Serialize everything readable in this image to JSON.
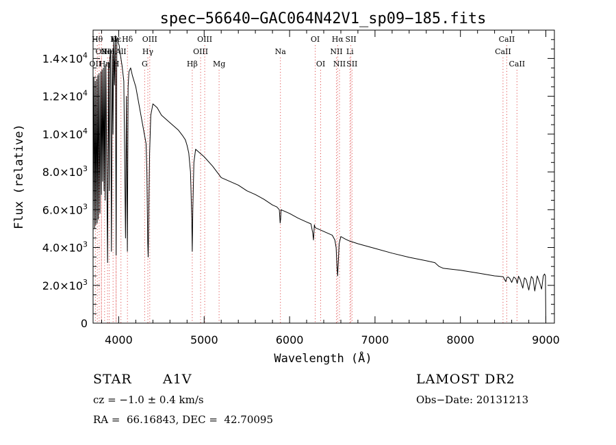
{
  "chart_data": {
    "type": "line",
    "title": "spec−56640−GAC064N42V1_sp09−185.fits",
    "xlabel": "Wavelength (Å)",
    "ylabel": "Flux (relative)",
    "xlim": [
      3700,
      9100
    ],
    "ylim": [
      0,
      15500
    ],
    "xticks": [
      {
        "value": 4000,
        "label": "4000"
      },
      {
        "value": 5000,
        "label": "5000"
      },
      {
        "value": 6000,
        "label": "6000"
      },
      {
        "value": 7000,
        "label": "7000"
      },
      {
        "value": 8000,
        "label": "8000"
      },
      {
        "value": 9000,
        "label": "9000"
      }
    ],
    "yticks": [
      {
        "value": 0,
        "mant": "0",
        "exp": ""
      },
      {
        "value": 2000,
        "mant": "2.0×10",
        "exp": "3"
      },
      {
        "value": 4000,
        "mant": "4.0×10",
        "exp": "3"
      },
      {
        "value": 6000,
        "mant": "6.0×10",
        "exp": "3"
      },
      {
        "value": 8000,
        "mant": "8.0×10",
        "exp": "3"
      },
      {
        "value": 10000,
        "mant": "1.0×10",
        "exp": "4"
      },
      {
        "value": 12000,
        "mant": "1.2×10",
        "exp": "4"
      },
      {
        "value": 14000,
        "mant": "1.4×10",
        "exp": "4"
      }
    ],
    "line_color": "#000000",
    "marker_color": "#e05050",
    "series": [
      {
        "name": "spectrum",
        "x": [
          3700,
          3710,
          3718,
          3725,
          3732,
          3740,
          3748,
          3755,
          3762,
          3770,
          3780,
          3790,
          3798,
          3805,
          3812,
          3820,
          3828,
          3835,
          3842,
          3850,
          3860,
          3870,
          3880,
          3889,
          3895,
          3905,
          3915,
          3925,
          3933,
          3940,
          3950,
          3960,
          3970,
          3978,
          3985,
          3995,
          4005,
          4020,
          4040,
          4060,
          4080,
          4090,
          4101,
          4110,
          4120,
          4140,
          4160,
          4180,
          4200,
          4220,
          4240,
          4260,
          4280,
          4300,
          4320,
          4330,
          4340,
          4345,
          4350,
          4355,
          4362,
          4375,
          4400,
          4450,
          4500,
          4550,
          4600,
          4650,
          4700,
          4750,
          4780,
          4800,
          4820,
          4840,
          4855,
          4861,
          4867,
          4880,
          4900,
          4950,
          5000,
          5100,
          5200,
          5300,
          5400,
          5500,
          5600,
          5700,
          5800,
          5850,
          5880,
          5890,
          5895,
          5900,
          5950,
          6000,
          6100,
          6200,
          6250,
          6270,
          6280,
          6290,
          6300,
          6350,
          6400,
          6450,
          6500,
          6530,
          6545,
          6555,
          6563,
          6570,
          6580,
          6600,
          6650,
          6700,
          6800,
          7000,
          7200,
          7400,
          7600,
          7700,
          7750,
          7800,
          8000,
          8200,
          8400,
          8450,
          8500,
          8530,
          8545,
          8560,
          8580,
          8600,
          8625,
          8650,
          8665,
          8680,
          8700,
          8730,
          8750,
          8770,
          8800,
          8830,
          8850,
          8870,
          8900,
          8930,
          8950,
          8970,
          8985,
          8995,
          9000
        ],
        "y": [
          4600,
          13000,
          5000,
          12800,
          5200,
          12900,
          5300,
          13100,
          5500,
          13200,
          5800,
          13300,
          6800,
          13400,
          7500,
          13500,
          7000,
          13600,
          6500,
          13700,
          8000,
          3200,
          13800,
          7000,
          13900,
          14500,
          3800,
          14200,
          10000,
          15000,
          12600,
          15200,
          3600,
          15000,
          15100,
          14800,
          14700,
          14200,
          13600,
          12800,
          4500,
          12000,
          3800,
          12500,
          13300,
          13500,
          13100,
          12800,
          12500,
          12000,
          11500,
          11000,
          10500,
          10000,
          9500,
          8000,
          4200,
          3500,
          5000,
          7000,
          9000,
          11000,
          11600,
          11400,
          11000,
          10800,
          10600,
          10400,
          10200,
          9900,
          9700,
          9400,
          9000,
          8000,
          5500,
          3800,
          6000,
          8500,
          9200,
          9000,
          8800,
          8300,
          7700,
          7500,
          7300,
          7000,
          6800,
          6550,
          6250,
          6150,
          6000,
          5300,
          5500,
          6000,
          5900,
          5800,
          5550,
          5350,
          5250,
          4800,
          4400,
          5200,
          5050,
          4950,
          4850,
          4750,
          4650,
          4400,
          4000,
          3000,
          2500,
          3200,
          4200,
          4580,
          4450,
          4350,
          4200,
          3950,
          3700,
          3480,
          3300,
          3200,
          3000,
          2900,
          2800,
          2650,
          2500,
          2480,
          2450,
          2200,
          2420,
          2440,
          2350,
          2150,
          2440,
          2350,
          2100,
          2480,
          2300,
          1850,
          2400,
          2300,
          1750,
          2470,
          2350,
          1700,
          2500,
          2100,
          1800,
          2500,
          2600,
          2500,
          0
        ]
      }
    ],
    "line_markers": [
      {
        "x": 3727,
        "label": "OII",
        "row": 3
      },
      {
        "x": 3750,
        "label": "Hθ",
        "row": 1
      },
      {
        "x": 3771,
        "label": "",
        "row": 0
      },
      {
        "x": 3798,
        "label": "",
        "row": 0
      },
      {
        "x": 3798,
        "label": "OII",
        "row": 2
      },
      {
        "x": 3835,
        "label": "Hη",
        "row": 3
      },
      {
        "x": 3869,
        "label": "NeI",
        "row": 2
      },
      {
        "x": 3889,
        "label": "He",
        "row": 2
      },
      {
        "x": 3934,
        "label": "K",
        "row": 1
      },
      {
        "x": 3969,
        "label": "H",
        "row": 3
      },
      {
        "x": 3970,
        "label": "Hε",
        "row": 1
      },
      {
        "x": 4026,
        "label": "AlI",
        "row": 2
      },
      {
        "x": 4102,
        "label": "Hδ",
        "row": 1
      },
      {
        "x": 4304,
        "label": "G",
        "row": 3
      },
      {
        "x": 4341,
        "label": "Hγ",
        "row": 2
      },
      {
        "x": 4363,
        "label": "OIII",
        "row": 1
      },
      {
        "x": 4861,
        "label": "Hβ",
        "row": 3
      },
      {
        "x": 4959,
        "label": "OIII",
        "row": 2
      },
      {
        "x": 5007,
        "label": "OIII",
        "row": 1
      },
      {
        "x": 5175,
        "label": "Mg",
        "row": 3
      },
      {
        "x": 5893,
        "label": "Na",
        "row": 2
      },
      {
        "x": 6300,
        "label": "OI",
        "row": 1
      },
      {
        "x": 6364,
        "label": "OI",
        "row": 3
      },
      {
        "x": 6548,
        "label": "NII",
        "row": 2
      },
      {
        "x": 6563,
        "label": "Hα",
        "row": 1
      },
      {
        "x": 6584,
        "label": "NII",
        "row": 3
      },
      {
        "x": 6707,
        "label": "Li",
        "row": 2
      },
      {
        "x": 6717,
        "label": "SII",
        "row": 1
      },
      {
        "x": 6731,
        "label": "SII",
        "row": 3
      },
      {
        "x": 8498,
        "label": "CaII",
        "row": 2
      },
      {
        "x": 8542,
        "label": "CaII",
        "row": 1
      },
      {
        "x": 8662,
        "label": "CaII",
        "row": 3
      }
    ]
  },
  "info": {
    "object_class": "STAR",
    "subclass": "A1V",
    "survey": "LAMOST DR2",
    "redshift_line": "cz = −1.0 ± 0.4 km/s",
    "obs_date_line": "Obs−Date: 20131213",
    "coords_line": "RA =  66.16843, DEC =  42.70095"
  }
}
